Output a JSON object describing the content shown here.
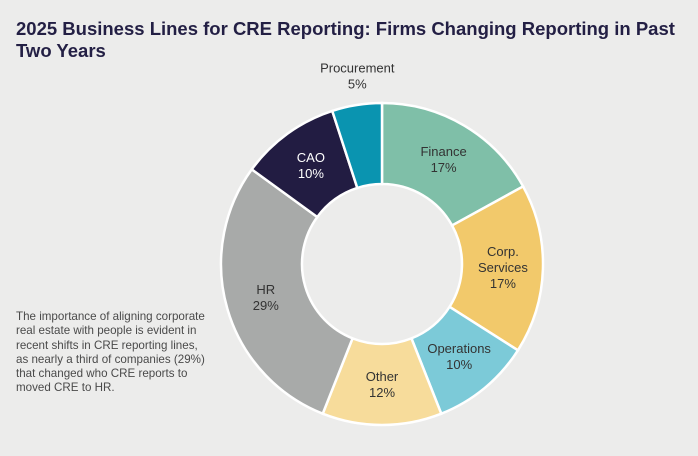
{
  "chart_data": {
    "type": "pie",
    "subtype": "donut",
    "title": "2025 Business Lines for CRE Reporting: Firms Changing Reporting in Past Two Years",
    "unit": "%",
    "slices": [
      {
        "name": "Finance",
        "lines": [
          "Finance",
          "17%"
        ],
        "value": 17,
        "color": "#7fbfa8",
        "text_color": "#333333"
      },
      {
        "name": "Corp. Services",
        "lines": [
          "Corp.",
          "Services",
          "17%"
        ],
        "value": 17,
        "color": "#f2c96b",
        "text_color": "#333333"
      },
      {
        "name": "Operations",
        "lines": [
          "Operations",
          "10%"
        ],
        "value": 10,
        "color": "#7ccad8",
        "text_color": "#333333"
      },
      {
        "name": "Other",
        "lines": [
          "Other",
          "12%"
        ],
        "value": 12,
        "color": "#f7dc9b",
        "text_color": "#333333"
      },
      {
        "name": "HR",
        "lines": [
          "HR",
          "29%"
        ],
        "value": 29,
        "color": "#a8aaa9",
        "text_color": "#333333"
      },
      {
        "name": "CAO",
        "lines": [
          "CAO",
          "10%"
        ],
        "value": 10,
        "color": "#221c42",
        "text_color": "#ffffff"
      },
      {
        "name": "Procurement",
        "lines": [
          "Procurement",
          "5%"
        ],
        "value": 5,
        "color": "#0a94b0",
        "text_color": "#333333",
        "outside": true
      }
    ]
  },
  "note": "The importance of aligning corporate real estate with people is evident in recent shifts in CRE reporting lines, as nearly a third of companies (29%) that changed who CRE reports to moved CRE to HR."
}
